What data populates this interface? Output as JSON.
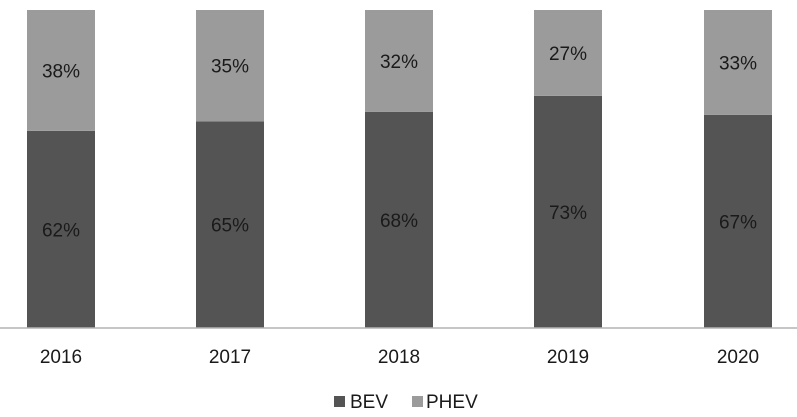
{
  "chart_data": {
    "type": "bar",
    "stacked": true,
    "percent_stacked": true,
    "categories": [
      "2016",
      "2017",
      "2018",
      "2019",
      "2020"
    ],
    "series": [
      {
        "name": "BEV",
        "values": [
          62,
          65,
          68,
          73,
          67
        ],
        "labels": [
          "62%",
          "65%",
          "68%",
          "73%",
          "67%"
        ],
        "color": "#545454"
      },
      {
        "name": "PHEV",
        "values": [
          38,
          35,
          32,
          27,
          33
        ],
        "labels": [
          "38%",
          "35%",
          "32%",
          "27%",
          "33%"
        ],
        "color": "#9b9b9b"
      }
    ],
    "ylim": [
      0,
      100
    ],
    "grid": false,
    "legend_position": "bottom"
  }
}
